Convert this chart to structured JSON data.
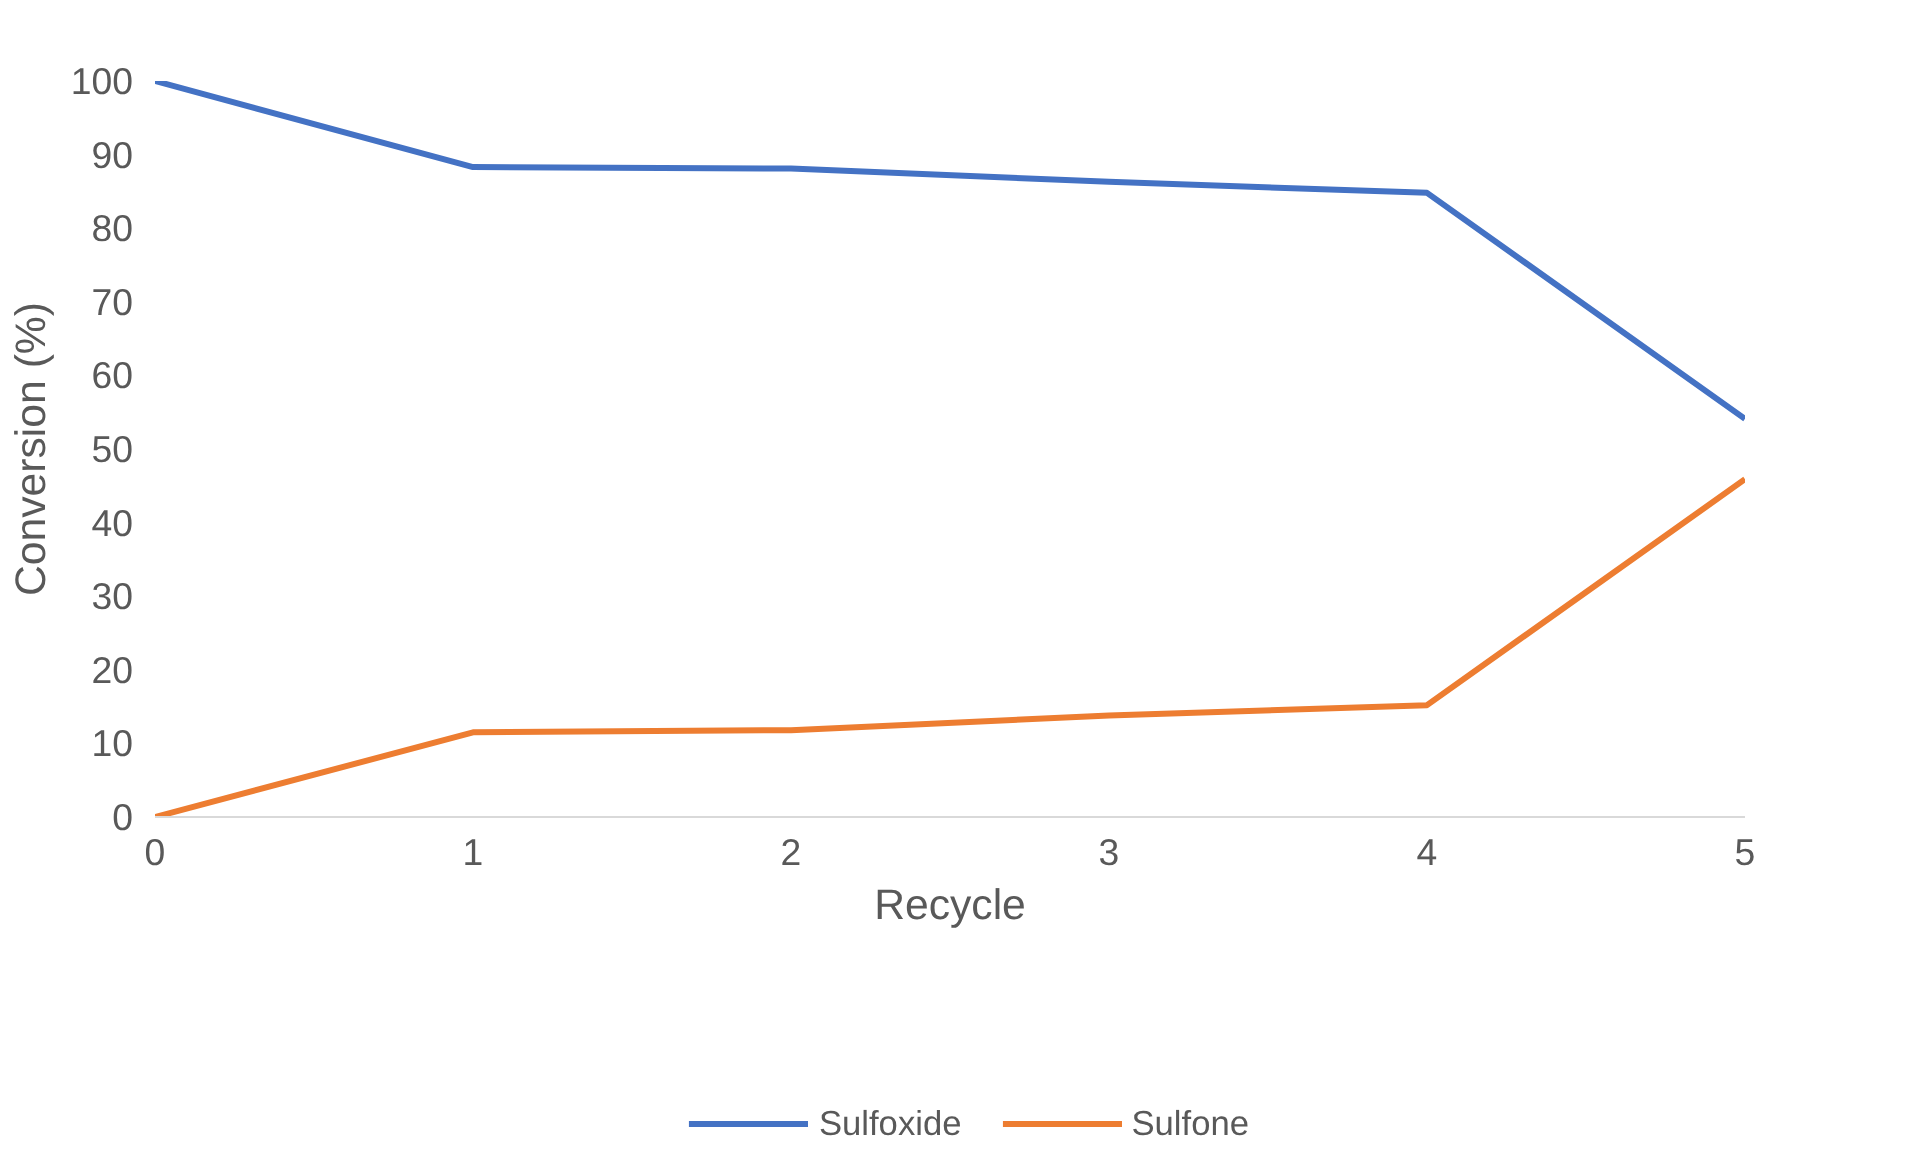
{
  "chart_data": {
    "type": "line",
    "xlabel": "Recycle",
    "ylabel": "Conversion (%)",
    "x": [
      0,
      1,
      2,
      3,
      4,
      5
    ],
    "series": [
      {
        "name": "Sulfoxide",
        "color": "#4472c4",
        "values": [
          100,
          88.3,
          88.1,
          86.3,
          84.8,
          54.1
        ]
      },
      {
        "name": "Sulfone",
        "color": "#ed7d31",
        "values": [
          0,
          11.5,
          11.8,
          13.8,
          15.2,
          45.9
        ]
      }
    ],
    "xlim": [
      0,
      5
    ],
    "xticks": [
      0,
      1,
      2,
      3,
      4,
      5
    ],
    "ylim": [
      0,
      100
    ],
    "yticks": [
      0,
      10,
      20,
      30,
      40,
      50,
      60,
      70,
      80,
      90,
      100
    ],
    "grid": false,
    "legend": "bottom",
    "marker": "none",
    "line_style": "solid"
  }
}
